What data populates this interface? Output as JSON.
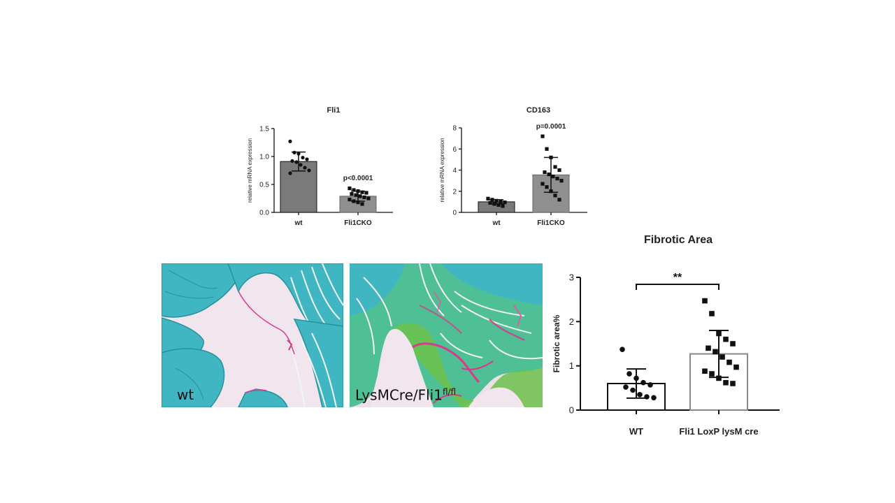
{
  "chart_data": [
    {
      "type": "bar",
      "title": "Fli1",
      "ylabel": "relative mRNA expression",
      "xlabel": "",
      "categories": [
        "wt",
        "Fli1CKO"
      ],
      "values": [
        0.91,
        0.29
      ],
      "error": [
        0.17,
        0.09
      ],
      "ylim": [
        0,
        1.5
      ],
      "yticks": [
        0,
        0.5,
        1.0,
        1.5
      ],
      "ytick_labels": [
        "0.0",
        "0.5",
        "1.0",
        "1.5"
      ],
      "points": [
        [
          1.27,
          1.07,
          1.05,
          0.98,
          0.95,
          0.92,
          0.9,
          0.85,
          0.8,
          0.75,
          0.7
        ],
        [
          0.43,
          0.4,
          0.38,
          0.36,
          0.35,
          0.33,
          0.31,
          0.29,
          0.27,
          0.25,
          0.23,
          0.2,
          0.18,
          0.15
        ]
      ],
      "annotation": "p<0.0001",
      "bar_colors": [
        "#7a7a7a",
        "#8f8f8f"
      ]
    },
    {
      "type": "bar",
      "title": "CD163",
      "ylabel": "relative mRNA expression",
      "xlabel": "",
      "categories": [
        "wt",
        "Fli1CKO"
      ],
      "values": [
        1.0,
        3.55
      ],
      "error": [
        0.2,
        1.65
      ],
      "ylim": [
        0,
        8
      ],
      "yticks": [
        0,
        2,
        4,
        6,
        8
      ],
      "ytick_labels": [
        "0",
        "2",
        "4",
        "6",
        "8"
      ],
      "points": [
        [
          1.3,
          1.2,
          1.1,
          1.0,
          0.95,
          0.9,
          0.8,
          0.7,
          0.6
        ],
        [
          7.2,
          6.0,
          5.2,
          4.3,
          4.0,
          3.8,
          3.6,
          3.4,
          3.2,
          3.0,
          2.7,
          2.4,
          2.0,
          1.6,
          1.2
        ]
      ],
      "annotation": "p=0.0001",
      "bar_colors": [
        "#7a7a7a",
        "#8f8f8f"
      ]
    },
    {
      "type": "bar",
      "title": "Fibrotic Area",
      "ylabel": "Fibrotic area%",
      "xlabel": "",
      "categories": [
        "WT",
        "Fli1 LoxP lysM cre"
      ],
      "values": [
        0.6,
        1.27
      ],
      "error": [
        0.33,
        0.53
      ],
      "ylim": [
        0,
        3
      ],
      "yticks": [
        0,
        1,
        2,
        3
      ],
      "ytick_labels": [
        "0",
        "1",
        "2",
        "3"
      ],
      "points": [
        [
          1.37,
          0.82,
          0.72,
          0.62,
          0.57,
          0.52,
          0.45,
          0.35,
          0.3,
          0.28
        ],
        [
          2.47,
          2.18,
          1.73,
          1.6,
          1.5,
          1.4,
          1.32,
          1.2,
          1.08,
          0.97,
          0.88,
          0.82,
          0.72,
          0.62,
          0.6
        ]
      ],
      "annotation": "**",
      "bar_colors": [
        "#ffffff",
        "#ffffff"
      ]
    }
  ],
  "histology": {
    "wt_label": "wt",
    "ko_label": "LysMCre/Fli1",
    "ko_label_sup": "fl/fl",
    "palette": {
      "background": "#efe4ec",
      "muscle": "#3fb6c2",
      "muscle_ko": "#4dbf8f",
      "fibrosis": "#d93a8c",
      "collagen_green": "#6cc24a"
    }
  }
}
